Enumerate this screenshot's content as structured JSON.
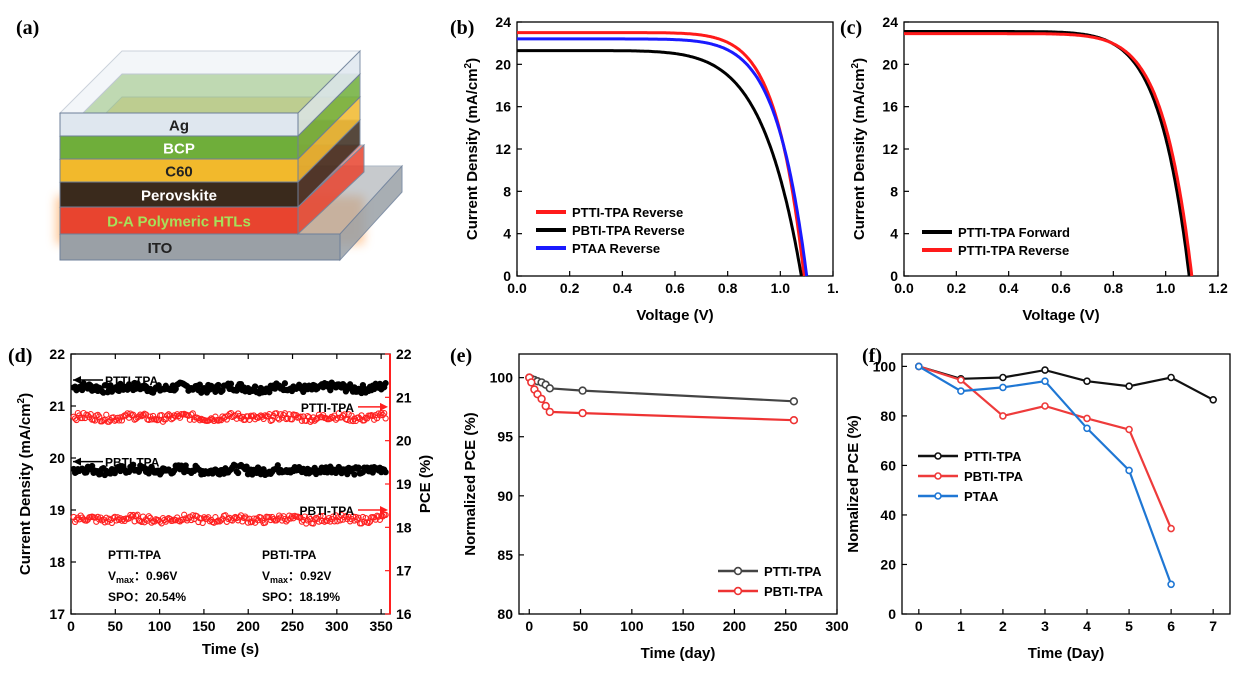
{
  "panels": {
    "a": {
      "label": "(a)",
      "layers": [
        {
          "name": "Ag",
          "color": "#dfe7ef",
          "text_color": "#222222"
        },
        {
          "name": "BCP",
          "color": "#6fae3a",
          "text_color": "#ffffff"
        },
        {
          "name": "C60",
          "color": "#f2b92c",
          "text_color": "#222222"
        },
        {
          "name": "Perovskite",
          "color": "#3a2a1c",
          "text_color": "#ffffff"
        },
        {
          "name": "D-A Polymeric HTLs",
          "color": "#e8442f",
          "text_color": "#a6e05a"
        },
        {
          "name": "ITO",
          "color": "#9aa0a6",
          "text_color": "#222222"
        }
      ]
    },
    "b": {
      "label": "(b)"
    },
    "c": {
      "label": "(c)"
    },
    "d": {
      "label": "(d)"
    },
    "e": {
      "label": "(e)"
    },
    "f": {
      "label": "(f)"
    }
  },
  "chart_data": [
    {
      "panel": "b",
      "type": "line",
      "xlabel": "Voltage (V)",
      "ylabel": "Current Density (mA/cm2)",
      "xlim": [
        0,
        1.2
      ],
      "ylim": [
        0,
        24
      ],
      "xticks": [
        "0.0",
        "0.2",
        "0.4",
        "0.6",
        "0.8",
        "1.0",
        "1."
      ],
      "yticks": [
        "0",
        "4",
        "8",
        "12",
        "16",
        "20",
        "24"
      ],
      "legend_position": "bottom-left",
      "series": [
        {
          "name": "PTTI-TPA Reverse",
          "color": "#ff1a1a",
          "jsc": 23.0,
          "voc": 1.09,
          "n": 1.35
        },
        {
          "name": "PBTI-TPA Reverse",
          "color": "#000000",
          "jsc": 21.3,
          "voc": 1.08,
          "n": 1.9
        },
        {
          "name": "PTAA Reverse",
          "color": "#1a1aff",
          "jsc": 22.4,
          "voc": 1.1,
          "n": 1.45
        }
      ]
    },
    {
      "panel": "c",
      "type": "line",
      "xlabel": "Voltage (V)",
      "ylabel": "Current Density (mA/cm2)",
      "xlim": [
        0,
        1.2
      ],
      "ylim": [
        0,
        24
      ],
      "xticks": [
        "0.0",
        "0.2",
        "0.4",
        "0.6",
        "0.8",
        "1.0",
        "1.2"
      ],
      "yticks": [
        "0",
        "4",
        "8",
        "12",
        "16",
        "20",
        "24"
      ],
      "legend_position": "bottom-left",
      "series": [
        {
          "name": "PTTI-TPA Forward",
          "color": "#000000",
          "jsc": 23.1,
          "voc": 1.09,
          "n": 1.45
        },
        {
          "name": "PTTI-TPA Reverse",
          "color": "#ff1a1a",
          "jsc": 22.9,
          "voc": 1.1,
          "n": 1.4
        }
      ]
    },
    {
      "panel": "d",
      "type": "scatter",
      "xlabel": "Time (s)",
      "ylabel": "Current Density (mA/cm2)",
      "ylabel_right": "PCE (%)",
      "xlim": [
        0,
        360
      ],
      "ylim": [
        17,
        22
      ],
      "ylim_right": [
        16,
        22
      ],
      "xticks": [
        "0",
        "50",
        "100",
        "150",
        "200",
        "250",
        "300",
        "350"
      ],
      "yticks": [
        "17",
        "18",
        "19",
        "20",
        "21",
        "22"
      ],
      "yticks_right": [
        "16",
        "17",
        "18",
        "19",
        "20",
        "21",
        "22"
      ],
      "series": [
        {
          "name": "PTTI-TPA",
          "axis": "left",
          "color": "#000000",
          "level": 21.35,
          "label_y": 21.5
        },
        {
          "name": "PBTI-TPA",
          "axis": "left",
          "color": "#000000",
          "level": 19.77,
          "label_y": 19.93
        },
        {
          "name": "PTTI-TPA",
          "axis": "right",
          "color": "#ff2020",
          "level": 20.54,
          "label_y": 20.78
        },
        {
          "name": "PBTI-TPA",
          "axis": "right",
          "color": "#ff2020",
          "level": 18.19,
          "label_y": 18.4
        }
      ],
      "annotations": [
        {
          "col": "left",
          "name": "PTTI-TPA",
          "vmax_label": "V",
          "vmax_sub": "max",
          "vmax_value": "：0.96V",
          "spo": "SPO：20.54%"
        },
        {
          "col": "right",
          "name": "PBTI-TPA",
          "vmax_label": "V",
          "vmax_sub": "max",
          "vmax_value": "：0.92V",
          "spo": "SPO：18.19%"
        }
      ]
    },
    {
      "panel": "e",
      "type": "line",
      "xlabel": "Time (day)",
      "ylabel": "Normalized PCE (%)",
      "xlim": [
        -10,
        300
      ],
      "ylim": [
        80,
        102
      ],
      "xticks": [
        "0",
        "50",
        "100",
        "150",
        "200",
        "250",
        "300"
      ],
      "yticks": [
        "80",
        "85",
        "90",
        "95",
        "100"
      ],
      "legend_position": "bottom-right",
      "series": [
        {
          "name": "PTTI-TPA",
          "color": "#444444",
          "x": [
            0,
            2,
            5,
            8,
            12,
            16,
            20,
            52,
            258
          ],
          "y": [
            100,
            99.9,
            99.8,
            99.7,
            99.6,
            99.4,
            99.1,
            98.9,
            98.0
          ]
        },
        {
          "name": "PBTI-TPA",
          "color": "#ee3333",
          "x": [
            0,
            2,
            5,
            8,
            12,
            16,
            20,
            52,
            258
          ],
          "y": [
            100,
            99.6,
            99.0,
            98.6,
            98.2,
            97.6,
            97.1,
            97.0,
            96.4
          ]
        }
      ]
    },
    {
      "panel": "f",
      "type": "line",
      "xlabel": "Time (Day)",
      "ylabel": "Nomalized PCE (%)",
      "xlim": [
        -0.4,
        7.4
      ],
      "ylim": [
        0,
        105
      ],
      "xticks": [
        "0",
        "1",
        "2",
        "3",
        "4",
        "5",
        "6",
        "7"
      ],
      "yticks": [
        "0",
        "20",
        "40",
        "60",
        "80",
        "100"
      ],
      "legend_position": "middle-left",
      "series": [
        {
          "name": "PTTI-TPA",
          "color": "#111111",
          "x": [
            0,
            1,
            2,
            3,
            4,
            5,
            6,
            7
          ],
          "y": [
            100,
            95,
            95.5,
            98.5,
            94,
            92,
            95.5,
            86.5
          ]
        },
        {
          "name": "PBTI-TPA",
          "color": "#ee3b3b",
          "x": [
            0,
            1,
            2,
            3,
            4,
            5,
            6
          ],
          "y": [
            100,
            94.5,
            80,
            84,
            79,
            74.5,
            34.5
          ]
        },
        {
          "name": "PTAA",
          "color": "#1f77d4",
          "x": [
            0,
            1,
            2,
            3,
            4,
            5,
            6
          ],
          "y": [
            100,
            90,
            91.5,
            94,
            75,
            58,
            12
          ]
        }
      ]
    }
  ]
}
